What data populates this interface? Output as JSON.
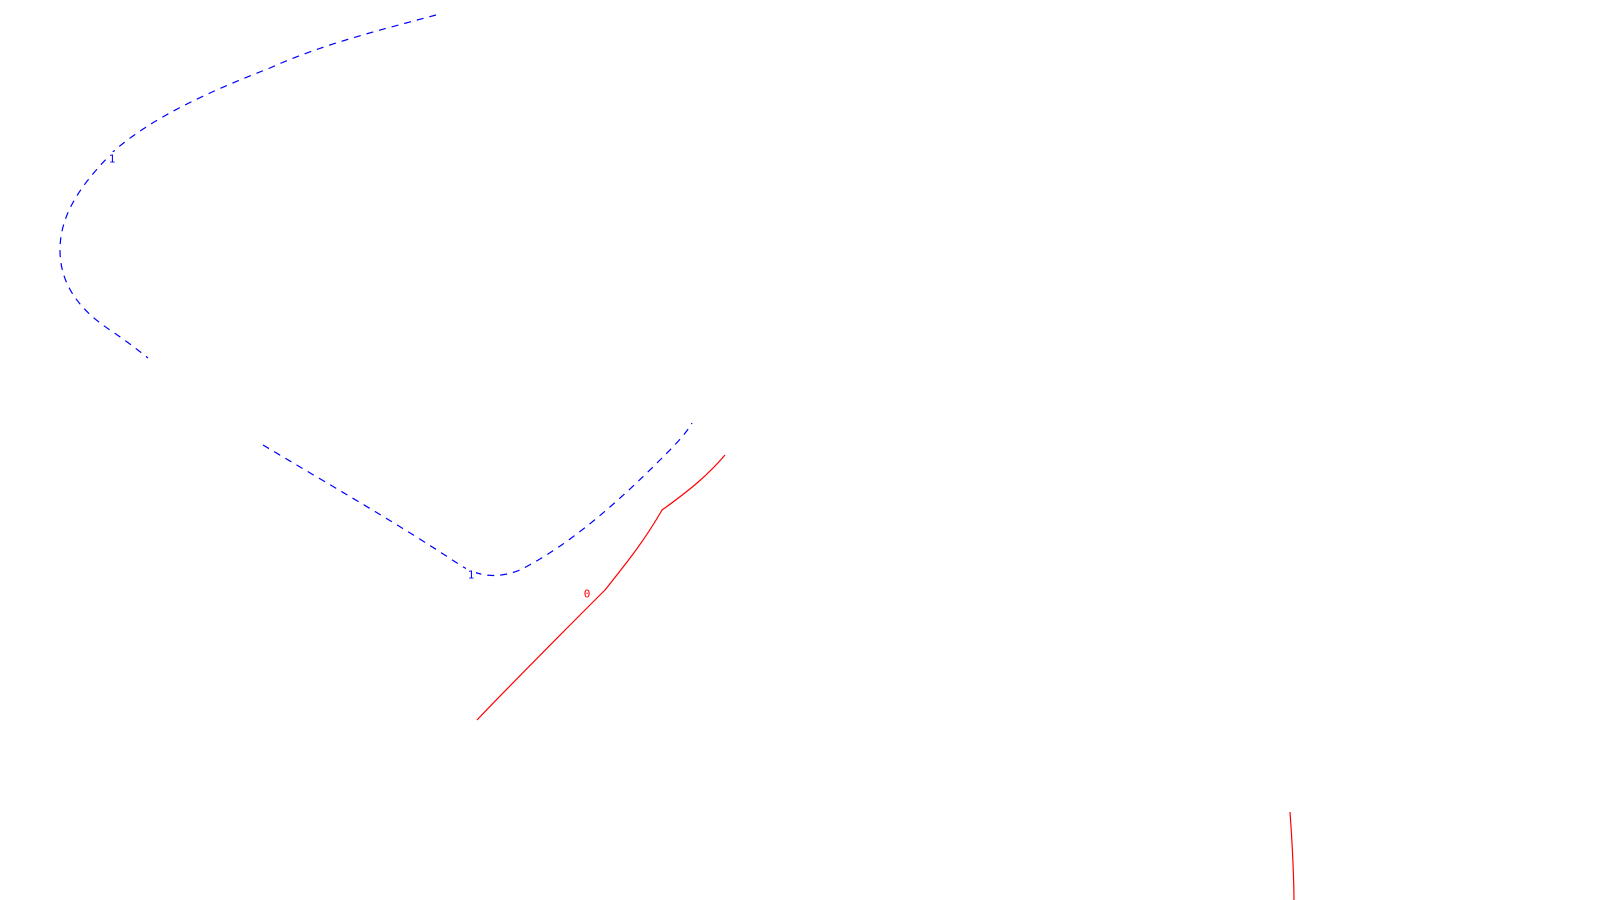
{
  "chart_data": {
    "type": "contour",
    "title": "",
    "xlabel": "",
    "ylabel": "",
    "grid": false,
    "legend": "none",
    "colors": {
      "positive": "#0000ff",
      "zero": "#ff0000",
      "background": "#ffffff"
    },
    "levels": [
      {
        "value": 1,
        "label": "1",
        "color": "#0000ff",
        "dashed": true
      },
      {
        "value": 0,
        "label": "0",
        "color": "#ff0000",
        "dashed": false
      }
    ]
  }
}
